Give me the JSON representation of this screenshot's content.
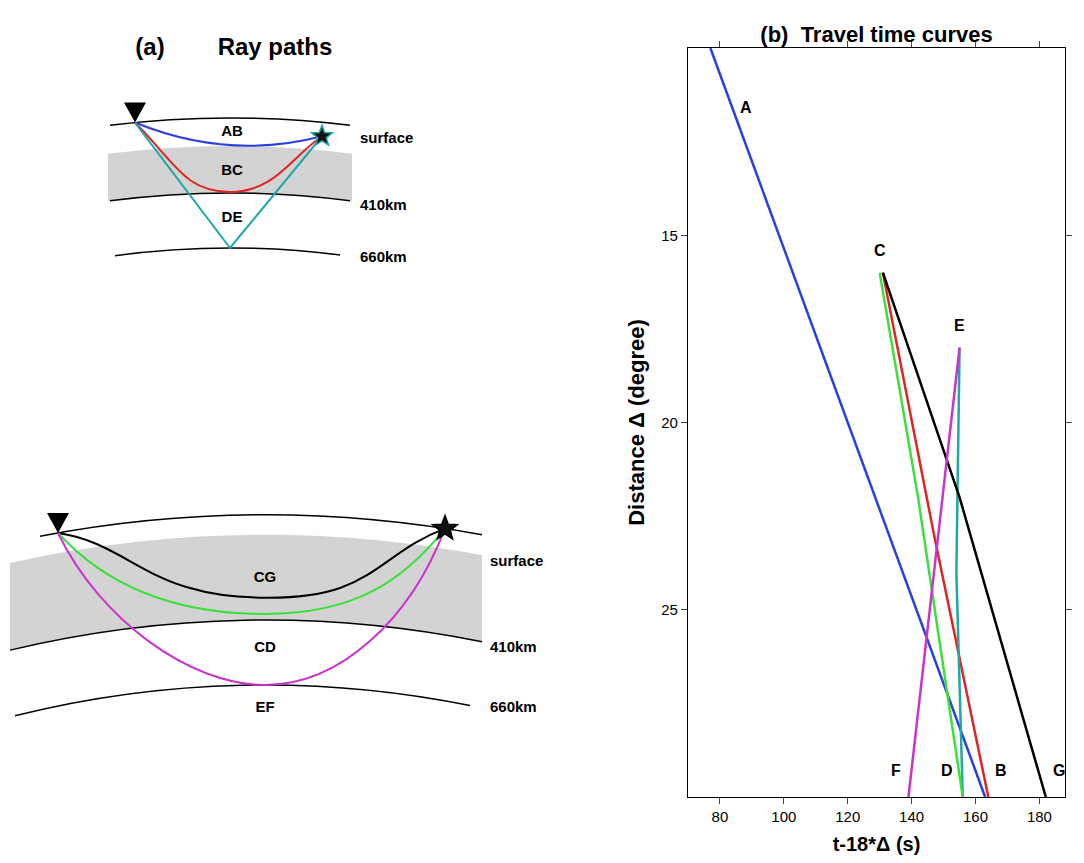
{
  "diagram": {
    "panel": "(a)",
    "title": "Ray paths",
    "boundaries": [
      "surface",
      "410km",
      "660km"
    ],
    "top": {
      "rays": [
        "AB",
        "BC",
        "DE"
      ]
    },
    "bottom": {
      "rays": [
        "CG",
        "CD",
        "EF"
      ]
    }
  },
  "chart_data": {
    "type": "line",
    "panel": "(b)",
    "title": "Travel time curves",
    "x_label": "t-18*Δ (s)",
    "y_label": "Distance Δ (degree)",
    "xlim": [
      70,
      188
    ],
    "ylim": [
      10,
      30
    ],
    "xticks": [
      80,
      100,
      120,
      140,
      160,
      180
    ],
    "yticks": [
      15,
      20,
      25
    ],
    "grid": false,
    "series": [
      {
        "name": "AB",
        "color": "#2a3fe0",
        "x": [
          77,
          120,
          163
        ],
        "y": [
          10,
          20,
          30
        ]
      },
      {
        "name": "BC",
        "color": "#e02424",
        "x": [
          131,
          147,
          164
        ],
        "y": [
          16,
          23,
          30
        ]
      },
      {
        "name": "DE",
        "color": "#1fa8a8",
        "x": [
          155,
          154,
          156
        ],
        "y": [
          18,
          24,
          30
        ]
      },
      {
        "name": "CG",
        "color": "#000000",
        "x": [
          131,
          155,
          182
        ],
        "y": [
          16,
          22,
          30
        ]
      },
      {
        "name": "CD",
        "color": "#3ce03c",
        "x": [
          130,
          142,
          156
        ],
        "y": [
          16,
          22,
          30
        ]
      },
      {
        "name": "EF",
        "color": "#cc33cc",
        "x": [
          155,
          147,
          139
        ],
        "y": [
          18,
          24,
          30
        ]
      }
    ],
    "labels": [
      {
        "text": "A",
        "x": 88,
        "y": 11.6
      },
      {
        "text": "C",
        "x": 130,
        "y": 15.4
      },
      {
        "text": "E",
        "x": 155,
        "y": 17.4
      },
      {
        "text": "F",
        "x": 135,
        "y": 29.3
      },
      {
        "text": "D",
        "x": 151,
        "y": 29.3
      },
      {
        "text": "B",
        "x": 168,
        "y": 29.3
      },
      {
        "text": "G",
        "x": 186,
        "y": 29.3
      }
    ]
  }
}
